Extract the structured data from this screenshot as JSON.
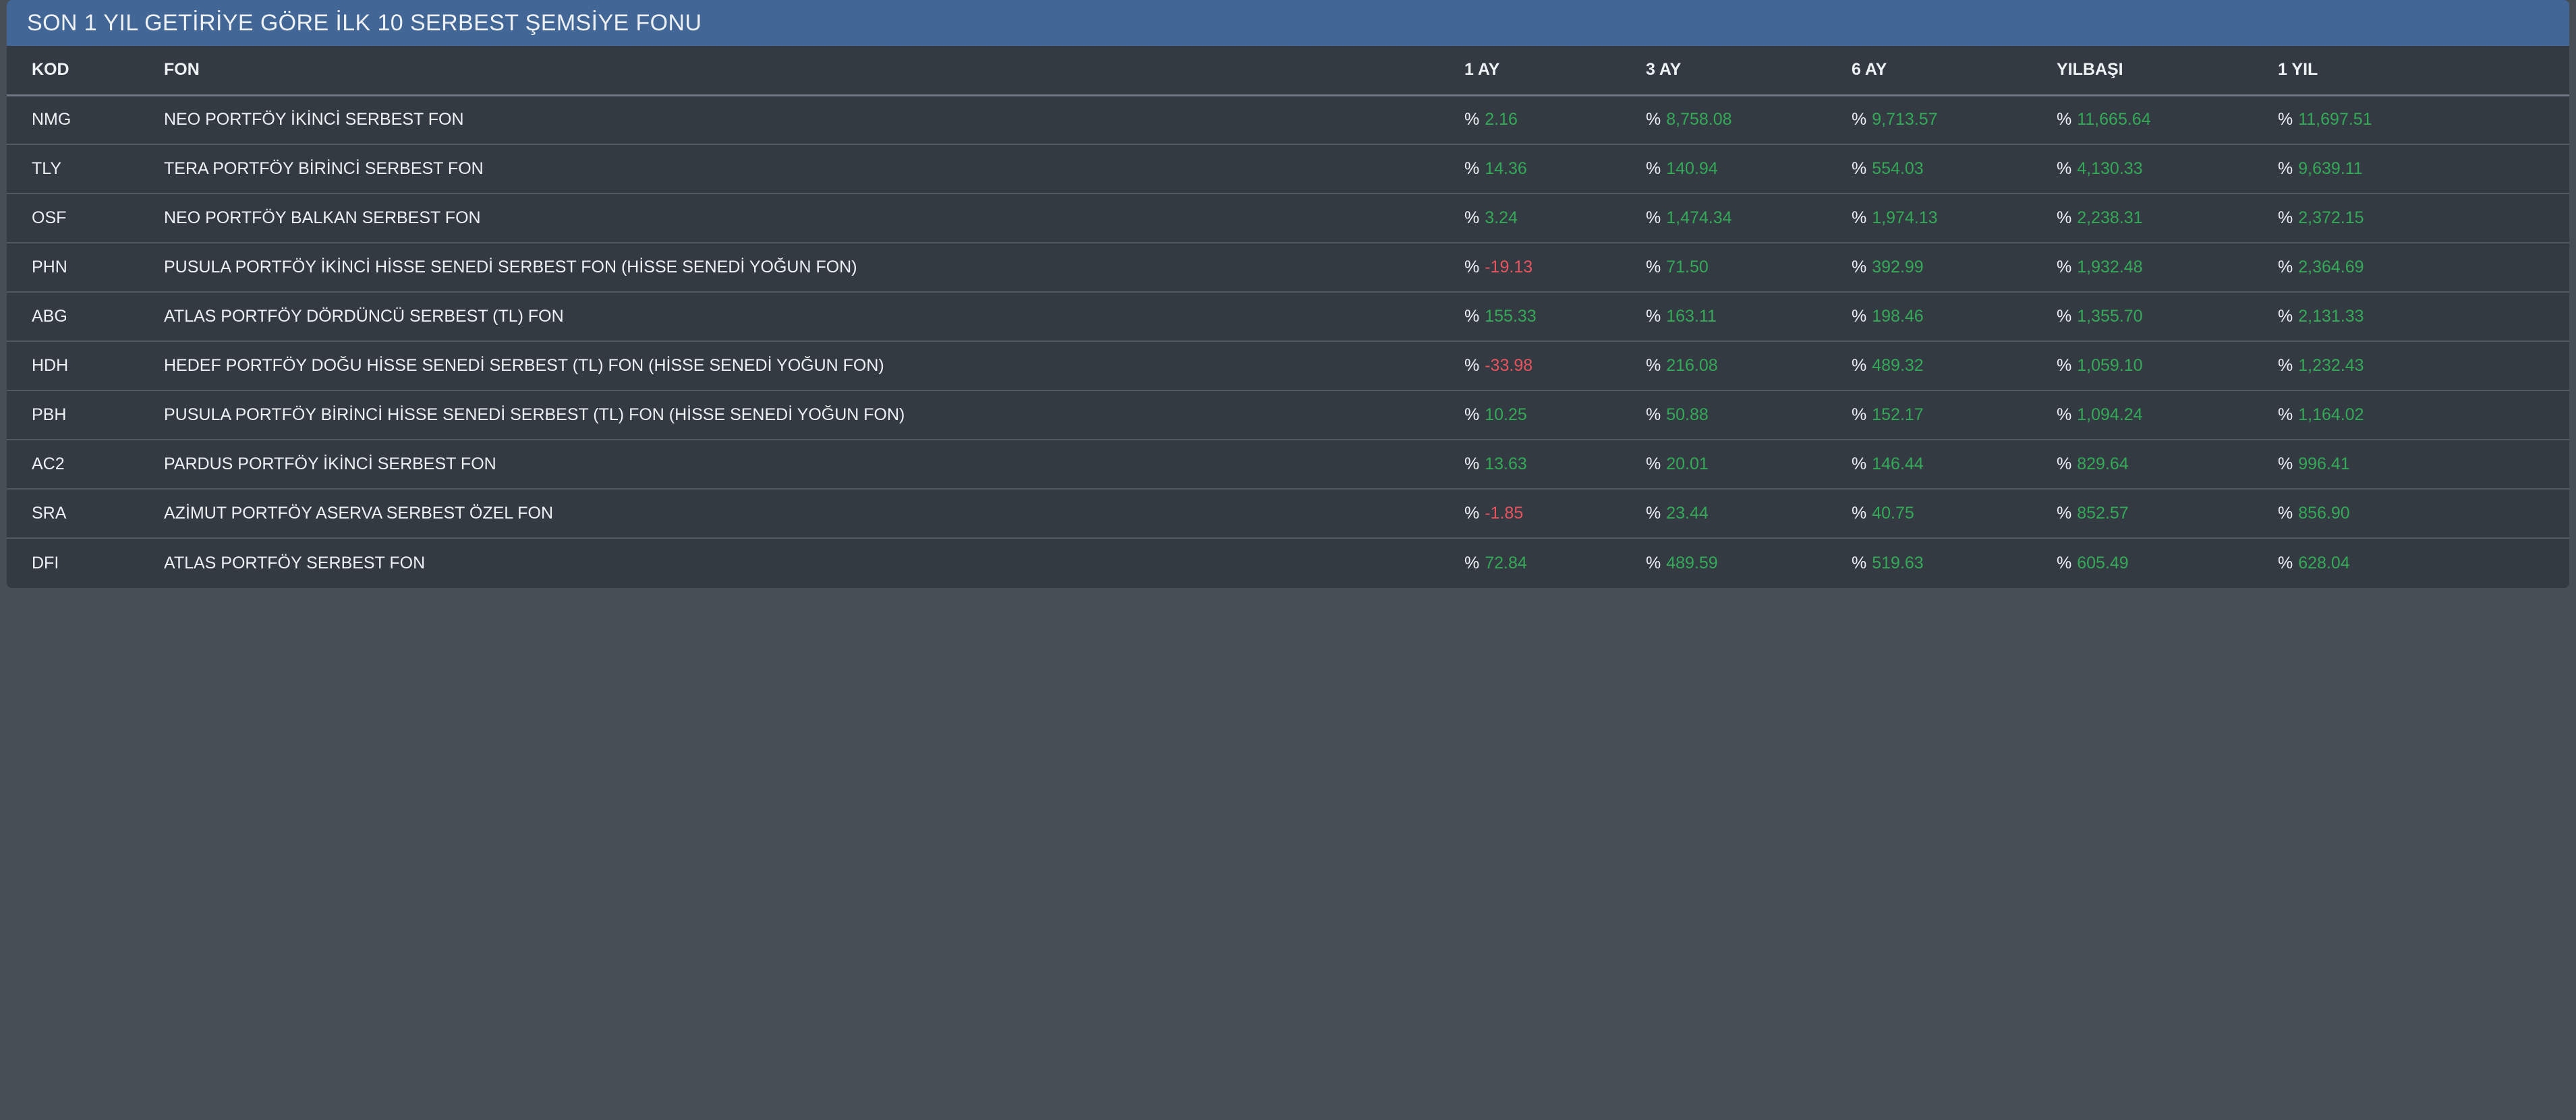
{
  "panel": {
    "title": "SON 1 YIL GETİRİYE GÖRE İLK 10 SERBEST ŞEMSİYE FONU"
  },
  "table": {
    "columns": [
      "KOD",
      "FON",
      "1 AY",
      "3 AY",
      "6 AY",
      "YILBAŞI",
      "1 YIL"
    ],
    "percent_prefix": "%",
    "rows": [
      {
        "kod": "NMG",
        "fon": "NEO PORTFÖY İKİNCİ SERBEST FON",
        "values": [
          "2.16",
          "8,758.08",
          "9,713.57",
          "11,665.64",
          "11,697.51"
        ]
      },
      {
        "kod": "TLY",
        "fon": "TERA PORTFÖY BİRİNCİ SERBEST FON",
        "values": [
          "14.36",
          "140.94",
          "554.03",
          "4,130.33",
          "9,639.11"
        ]
      },
      {
        "kod": "OSF",
        "fon": "NEO PORTFÖY BALKAN SERBEST FON",
        "values": [
          "3.24",
          "1,474.34",
          "1,974.13",
          "2,238.31",
          "2,372.15"
        ]
      },
      {
        "kod": "PHN",
        "fon": "PUSULA PORTFÖY İKİNCİ HİSSE SENEDİ SERBEST FON (HİSSE SENEDİ YOĞUN FON)",
        "values": [
          "-19.13",
          "71.50",
          "392.99",
          "1,932.48",
          "2,364.69"
        ]
      },
      {
        "kod": "ABG",
        "fon": "ATLAS PORTFÖY DÖRDÜNCÜ SERBEST (TL) FON",
        "values": [
          "155.33",
          "163.11",
          "198.46",
          "1,355.70",
          "2,131.33"
        ]
      },
      {
        "kod": "HDH",
        "fon": "HEDEF PORTFÖY DOĞU HİSSE SENEDİ SERBEST (TL) FON (HİSSE SENEDİ YOĞUN FON)",
        "values": [
          "-33.98",
          "216.08",
          "489.32",
          "1,059.10",
          "1,232.43"
        ]
      },
      {
        "kod": "PBH",
        "fon": "PUSULA PORTFÖY BİRİNCİ HİSSE SENEDİ SERBEST (TL) FON (HİSSE SENEDİ YOĞUN FON)",
        "values": [
          "10.25",
          "50.88",
          "152.17",
          "1,094.24",
          "1,164.02"
        ]
      },
      {
        "kod": "AC2",
        "fon": "PARDUS PORTFÖY İKİNCİ SERBEST FON",
        "values": [
          "13.63",
          "20.01",
          "146.44",
          "829.64",
          "996.41"
        ]
      },
      {
        "kod": "SRA",
        "fon": "AZİMUT PORTFÖY ASERVA SERBEST ÖZEL FON",
        "values": [
          "-1.85",
          "23.44",
          "40.75",
          "852.57",
          "856.90"
        ]
      },
      {
        "kod": "DFI",
        "fon": "ATLAS PORTFÖY SERBEST FON",
        "values": [
          "72.84",
          "489.59",
          "519.63",
          "605.49",
          "628.04"
        ]
      }
    ]
  },
  "colors": {
    "page_bg": "#474e56",
    "card_bg": "#333a42",
    "header_bar": "#426696",
    "text": "#eef1f4",
    "positive": "#34a958",
    "negative": "#e8535e",
    "row_divider": "#525960",
    "header_divider": "#6e7683"
  }
}
